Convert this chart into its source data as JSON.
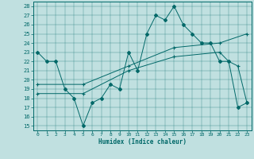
{
  "bg_color": "#c0e0e0",
  "line_color": "#006868",
  "xlim": [
    -0.5,
    23.5
  ],
  "ylim": [
    14.5,
    28.5
  ],
  "yticks": [
    15,
    16,
    17,
    18,
    19,
    20,
    21,
    22,
    23,
    24,
    25,
    26,
    27,
    28
  ],
  "xticks": [
    0,
    1,
    2,
    3,
    4,
    5,
    6,
    7,
    8,
    9,
    10,
    11,
    12,
    13,
    14,
    15,
    16,
    17,
    18,
    19,
    20,
    21,
    22,
    23
  ],
  "xlabel": "Humidex (Indice chaleur)",
  "main_x": [
    0,
    1,
    2,
    3,
    4,
    5,
    6,
    7,
    8,
    9,
    10,
    11,
    12,
    13,
    14,
    15,
    16,
    17,
    18,
    19,
    20,
    21,
    22,
    23
  ],
  "main_y": [
    23,
    22,
    22,
    19,
    18,
    15,
    17.5,
    18,
    19.5,
    19,
    23,
    21,
    25,
    27,
    26.5,
    28,
    26,
    25,
    24,
    24,
    22,
    22,
    17,
    17.5
  ],
  "trend1_x": [
    0,
    5,
    10,
    15,
    20,
    23
  ],
  "trend1_y": [
    19.5,
    19.5,
    21.5,
    23.5,
    24,
    25
  ],
  "trend2_x": [
    0,
    5,
    10,
    15,
    20,
    21,
    22,
    23
  ],
  "trend2_y": [
    18.5,
    18.5,
    21,
    22.5,
    23,
    22,
    21.5,
    17.5
  ]
}
